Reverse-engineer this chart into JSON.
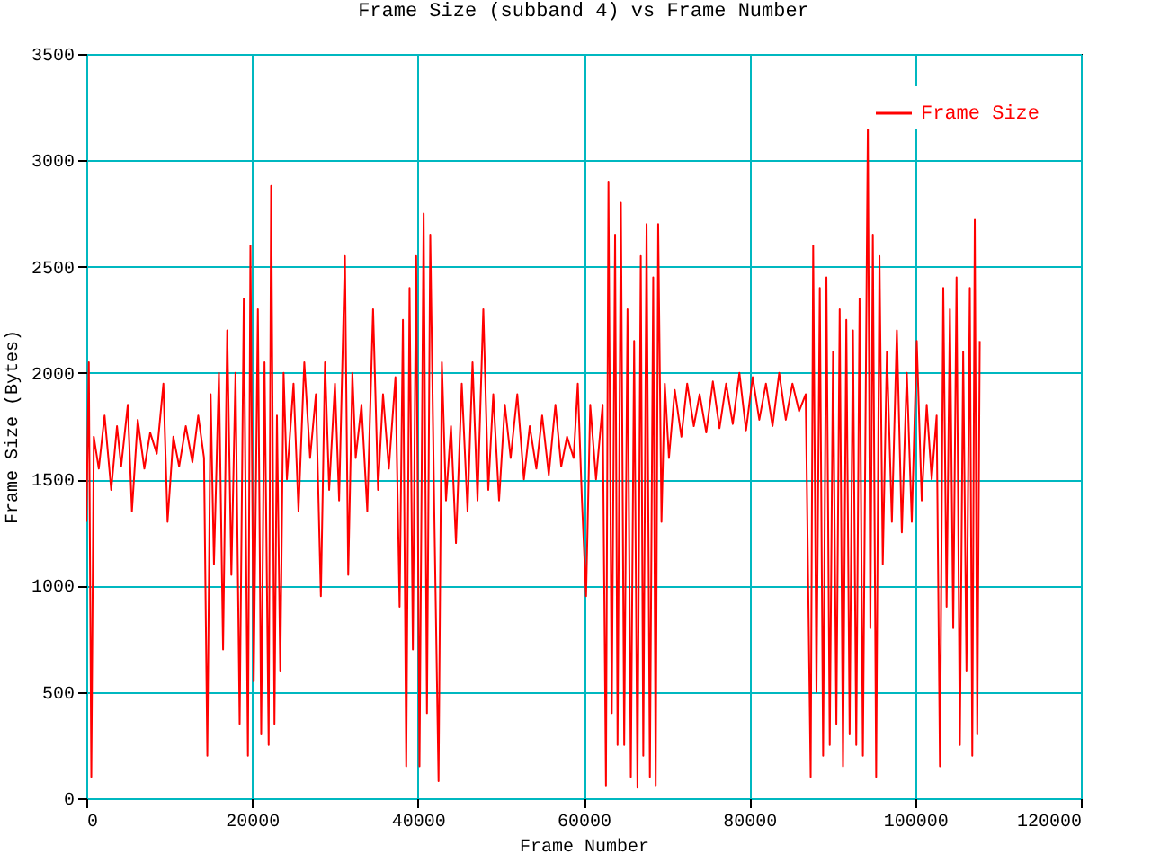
{
  "chart_data": {
    "type": "line",
    "title": "Frame Size (subband 4) vs Frame Number",
    "xlabel": "Frame Number",
    "ylabel": "Frame Size (Bytes)",
    "x": [
      0,
      300,
      600,
      900,
      1500,
      2200,
      3000,
      3700,
      4200,
      5000,
      5500,
      6200,
      7000,
      7700,
      8500,
      9300,
      9800,
      10500,
      11200,
      12000,
      12800,
      13500,
      14200,
      14600,
      15000,
      15400,
      16000,
      16500,
      17000,
      17500,
      18000,
      18500,
      19000,
      19500,
      19800,
      20200,
      20700,
      21100,
      21500,
      22000,
      22300,
      22700,
      23000,
      23400,
      23800,
      24200,
      25000,
      25600,
      26300,
      27000,
      27700,
      28300,
      28800,
      29300,
      30000,
      30500,
      31200,
      31600,
      32100,
      32500,
      33200,
      33900,
      34600,
      35200,
      35800,
      36500,
      37300,
      37800,
      38200,
      38600,
      39000,
      39400,
      39800,
      40200,
      40700,
      41100,
      41500,
      42000,
      42500,
      42900,
      43400,
      44000,
      44600,
      45300,
      46000,
      46600,
      47200,
      47900,
      48500,
      49100,
      49800,
      50500,
      51200,
      52000,
      52800,
      53500,
      54300,
      55000,
      55800,
      56600,
      57300,
      58000,
      58800,
      59300,
      59800,
      60300,
      60800,
      61500,
      62300,
      62700,
      63000,
      63400,
      63800,
      64100,
      64500,
      64900,
      65300,
      65700,
      66100,
      66500,
      66900,
      67200,
      67600,
      68000,
      68400,
      68700,
      69000,
      69400,
      69800,
      70300,
      71000,
      71800,
      72500,
      73300,
      74000,
      74800,
      75600,
      76400,
      77200,
      78000,
      78800,
      79600,
      80400,
      81200,
      82000,
      82800,
      83600,
      84400,
      85200,
      86000,
      86800,
      87400,
      87700,
      88100,
      88500,
      88900,
      89300,
      89700,
      90100,
      90500,
      90900,
      91300,
      91700,
      92100,
      92500,
      92900,
      93300,
      93700,
      94300,
      94600,
      94900,
      95300,
      95700,
      96100,
      96600,
      97200,
      97800,
      98400,
      99000,
      99600,
      100200,
      100800,
      101400,
      102000,
      102600,
      103000,
      103400,
      103800,
      104200,
      104600,
      105000,
      105400,
      105800,
      106200,
      106600,
      106900,
      107200,
      107500,
      107800
    ],
    "series": [
      {
        "name": "Frame Size",
        "color": "#ff0000",
        "values": [
          1300,
          2050,
          100,
          1700,
          1550,
          1800,
          1450,
          1750,
          1560,
          1850,
          1350,
          1780,
          1550,
          1720,
          1620,
          1950,
          1300,
          1700,
          1560,
          1750,
          1580,
          1800,
          1600,
          200,
          1900,
          1100,
          2000,
          700,
          2200,
          1050,
          2000,
          350,
          2350,
          200,
          2600,
          550,
          2300,
          300,
          2050,
          250,
          2880,
          350,
          1800,
          600,
          2000,
          1500,
          1950,
          1350,
          2050,
          1600,
          1900,
          950,
          2050,
          1450,
          1950,
          1400,
          2550,
          1050,
          2000,
          1600,
          1850,
          1350,
          2300,
          1450,
          1900,
          1550,
          1980,
          900,
          2250,
          150,
          2400,
          700,
          2550,
          150,
          2750,
          400,
          2650,
          1300,
          80,
          2050,
          1400,
          1750,
          1200,
          1950,
          1350,
          2050,
          1400,
          2300,
          1450,
          1900,
          1400,
          1850,
          1600,
          1900,
          1500,
          1750,
          1550,
          1800,
          1520,
          1850,
          1560,
          1700,
          1600,
          1950,
          1400,
          950,
          1850,
          1500,
          1850,
          60,
          2900,
          400,
          2650,
          250,
          2800,
          250,
          2300,
          100,
          2150,
          50,
          2550,
          200,
          2700,
          100,
          2450,
          60,
          2700,
          1300,
          1950,
          1600,
          1920,
          1700,
          1950,
          1750,
          1900,
          1720,
          1960,
          1740,
          1950,
          1760,
          2000,
          1730,
          1980,
          1780,
          1950,
          1750,
          2000,
          1780,
          1950,
          1820,
          1900,
          100,
          2600,
          500,
          2400,
          200,
          2450,
          250,
          2100,
          350,
          2300,
          150,
          2250,
          300,
          2200,
          250,
          2350,
          200,
          3180,
          800,
          2650,
          100,
          2550,
          1100,
          2100,
          1300,
          2200,
          1250,
          2000,
          1300,
          2150,
          1400,
          1850,
          1500,
          1800,
          150,
          2400,
          900,
          2300,
          800,
          2450,
          250,
          2100,
          600,
          2400,
          200,
          2720,
          300,
          2150
        ]
      }
    ],
    "xlim": [
      0,
      120000
    ],
    "xticks": [
      0,
      20000,
      40000,
      60000,
      80000,
      100000,
      120000
    ],
    "ylim": [
      0,
      3500
    ],
    "yticks": [
      0,
      500,
      1000,
      1500,
      2000,
      2500,
      3000,
      3500
    ],
    "grid": true,
    "legend": "top right"
  }
}
